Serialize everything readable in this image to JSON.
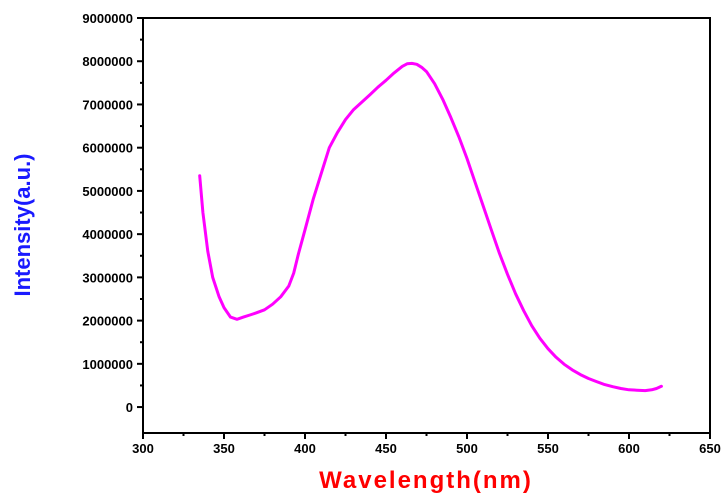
{
  "chart_data": {
    "type": "line",
    "title": "",
    "xlabel": "Wavelength(nm)",
    "ylabel": "Intensity(a.u.)",
    "xlim": [
      300,
      650
    ],
    "ylim": [
      -600000,
      9000000
    ],
    "xticks": [
      300,
      350,
      400,
      450,
      500,
      550,
      600,
      650
    ],
    "yticks": [
      0,
      1000000,
      2000000,
      3000000,
      4000000,
      5000000,
      6000000,
      7000000,
      8000000,
      9000000
    ],
    "xtick_labels": [
      "300",
      "350",
      "400",
      "450",
      "500",
      "550",
      "600",
      "650"
    ],
    "ytick_labels": [
      "0",
      "1000000",
      "2000000",
      "3000000",
      "4000000",
      "5000000",
      "6000000",
      "7000000",
      "8000000",
      "9000000"
    ],
    "grid": false,
    "series": [
      {
        "color": "#ff00ff",
        "x": [
          335,
          337,
          340,
          343,
          347,
          350,
          354,
          358,
          362,
          366,
          370,
          375,
          380,
          385,
          390,
          393,
          396,
          400,
          405,
          410,
          415,
          420,
          425,
          430,
          435,
          440,
          445,
          450,
          455,
          460,
          463,
          466,
          469,
          472,
          475,
          480,
          485,
          490,
          495,
          500,
          505,
          510,
          515,
          520,
          525,
          530,
          535,
          540,
          545,
          550,
          555,
          560,
          565,
          570,
          575,
          580,
          585,
          590,
          595,
          600,
          605,
          610,
          614,
          617,
          620
        ],
        "y": [
          5350000,
          4500000,
          3600000,
          3000000,
          2550000,
          2300000,
          2080000,
          2030000,
          2080000,
          2130000,
          2180000,
          2250000,
          2380000,
          2550000,
          2800000,
          3100000,
          3550000,
          4100000,
          4800000,
          5400000,
          6000000,
          6350000,
          6650000,
          6880000,
          7050000,
          7220000,
          7400000,
          7560000,
          7730000,
          7880000,
          7940000,
          7950000,
          7930000,
          7860000,
          7760000,
          7480000,
          7120000,
          6700000,
          6250000,
          5750000,
          5200000,
          4650000,
          4100000,
          3560000,
          3070000,
          2620000,
          2230000,
          1880000,
          1590000,
          1350000,
          1150000,
          990000,
          860000,
          750000,
          660000,
          590000,
          520000,
          470000,
          430000,
          400000,
          390000,
          380000,
          400000,
          430000,
          480000
        ]
      }
    ],
    "colors": {
      "line": "#ff00ff",
      "xlabel": "#ff0000",
      "ylabel": "#1a1aff",
      "axis": "#000000"
    }
  }
}
